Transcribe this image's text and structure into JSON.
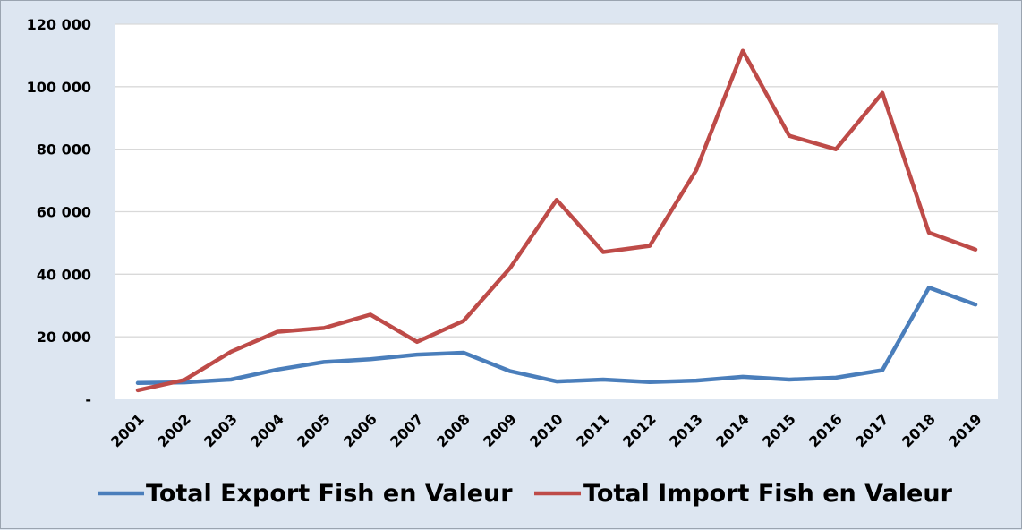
{
  "chart_data": {
    "type": "line",
    "title": "",
    "xlabel": "",
    "ylabel": "",
    "x": [
      "2001",
      "2002",
      "2003",
      "2004",
      "2005",
      "2006",
      "2007",
      "2008",
      "2009",
      "2010",
      "2011",
      "2012",
      "2013",
      "2014",
      "2015",
      "2016",
      "2017",
      "2018",
      "2019"
    ],
    "ylim": [
      0,
      120000
    ],
    "yticks": [
      {
        "value": 0,
        "label": "-"
      },
      {
        "value": 20000,
        "label": "20 000"
      },
      {
        "value": 40000,
        "label": "40 000"
      },
      {
        "value": 60000,
        "label": "60 000"
      },
      {
        "value": 80000,
        "label": "80 000"
      },
      {
        "value": 100000,
        "label": "100 000"
      },
      {
        "value": 120000,
        "label": "120 000"
      }
    ],
    "grid": true,
    "legend_position": "bottom",
    "series": [
      {
        "name": "Total Export Fish en Valeur",
        "color": "#4a7ebb",
        "values": [
          5200,
          5400,
          6300,
          9500,
          11900,
          12800,
          14300,
          14900,
          9000,
          5700,
          6300,
          5500,
          6000,
          7200,
          6300,
          6900,
          9300,
          35700,
          30300
        ]
      },
      {
        "name": "Total Import Fish en Valeur",
        "color": "#be4b48",
        "values": [
          2900,
          6200,
          15200,
          21600,
          22800,
          27100,
          18400,
          25100,
          42000,
          63800,
          47100,
          49100,
          73300,
          111500,
          84300,
          80000,
          98000,
          53300,
          47900
        ]
      }
    ]
  }
}
